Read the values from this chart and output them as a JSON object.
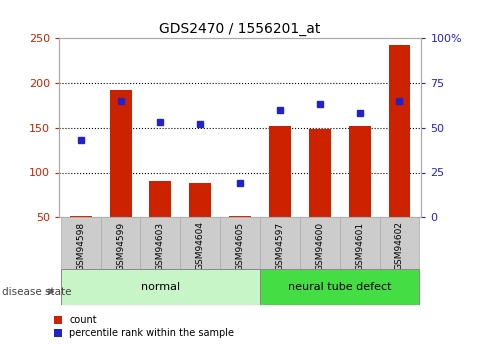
{
  "title": "GDS2470 / 1556201_at",
  "samples": [
    "GSM94598",
    "GSM94599",
    "GSM94603",
    "GSM94604",
    "GSM94605",
    "GSM94597",
    "GSM94600",
    "GSM94601",
    "GSM94602"
  ],
  "bar_values": [
    52,
    192,
    91,
    88,
    52,
    152,
    149,
    152,
    242
  ],
  "dot_values": [
    43,
    65,
    53,
    52,
    19,
    60,
    63,
    58,
    65
  ],
  "bar_color": "#cc2200",
  "dot_color": "#2222cc",
  "ylim_left": [
    50,
    250
  ],
  "ylim_right": [
    0,
    100
  ],
  "yticks_left": [
    50,
    100,
    150,
    200,
    250
  ],
  "yticks_right": [
    0,
    25,
    50,
    75,
    100
  ],
  "ytick_labels_right": [
    "0",
    "25",
    "50",
    "75",
    "100%"
  ],
  "groups": [
    {
      "label": "normal",
      "start": 0,
      "end": 5
    },
    {
      "label": "neural tube defect",
      "start": 5,
      "end": 9
    }
  ],
  "group_colors": [
    "#c8f5c8",
    "#44dd44"
  ],
  "disease_state_label": "disease state",
  "legend_items": [
    {
      "label": "count",
      "color": "#cc2200"
    },
    {
      "label": "percentile rank within the sample",
      "color": "#2222cc"
    }
  ],
  "grid_dotted_at": [
    100,
    150,
    200
  ],
  "bar_bottom": 50,
  "plot_bg": "#ffffff",
  "tick_box_color": "#cccccc",
  "tick_box_edge": "#aaaaaa"
}
